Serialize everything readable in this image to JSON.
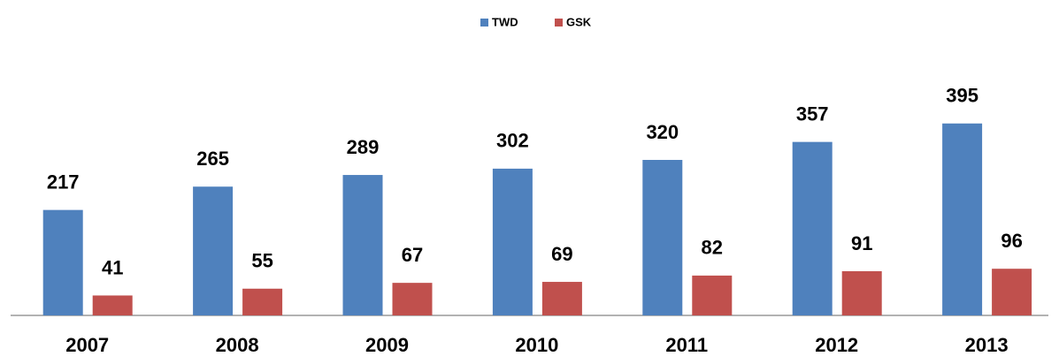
{
  "chart_data": {
    "type": "bar",
    "categories": [
      "2007",
      "2008",
      "2009",
      "2010",
      "2011",
      "2012",
      "2013"
    ],
    "series": [
      {
        "name": "TWD",
        "color": "#4f81bd",
        "values": [
          217,
          265,
          289,
          302,
          320,
          357,
          395
        ]
      },
      {
        "name": "GSK",
        "color": "#c0504d",
        "values": [
          41,
          55,
          67,
          69,
          82,
          91,
          96
        ]
      }
    ],
    "ylim": [
      0,
      400
    ],
    "legend": "top"
  }
}
